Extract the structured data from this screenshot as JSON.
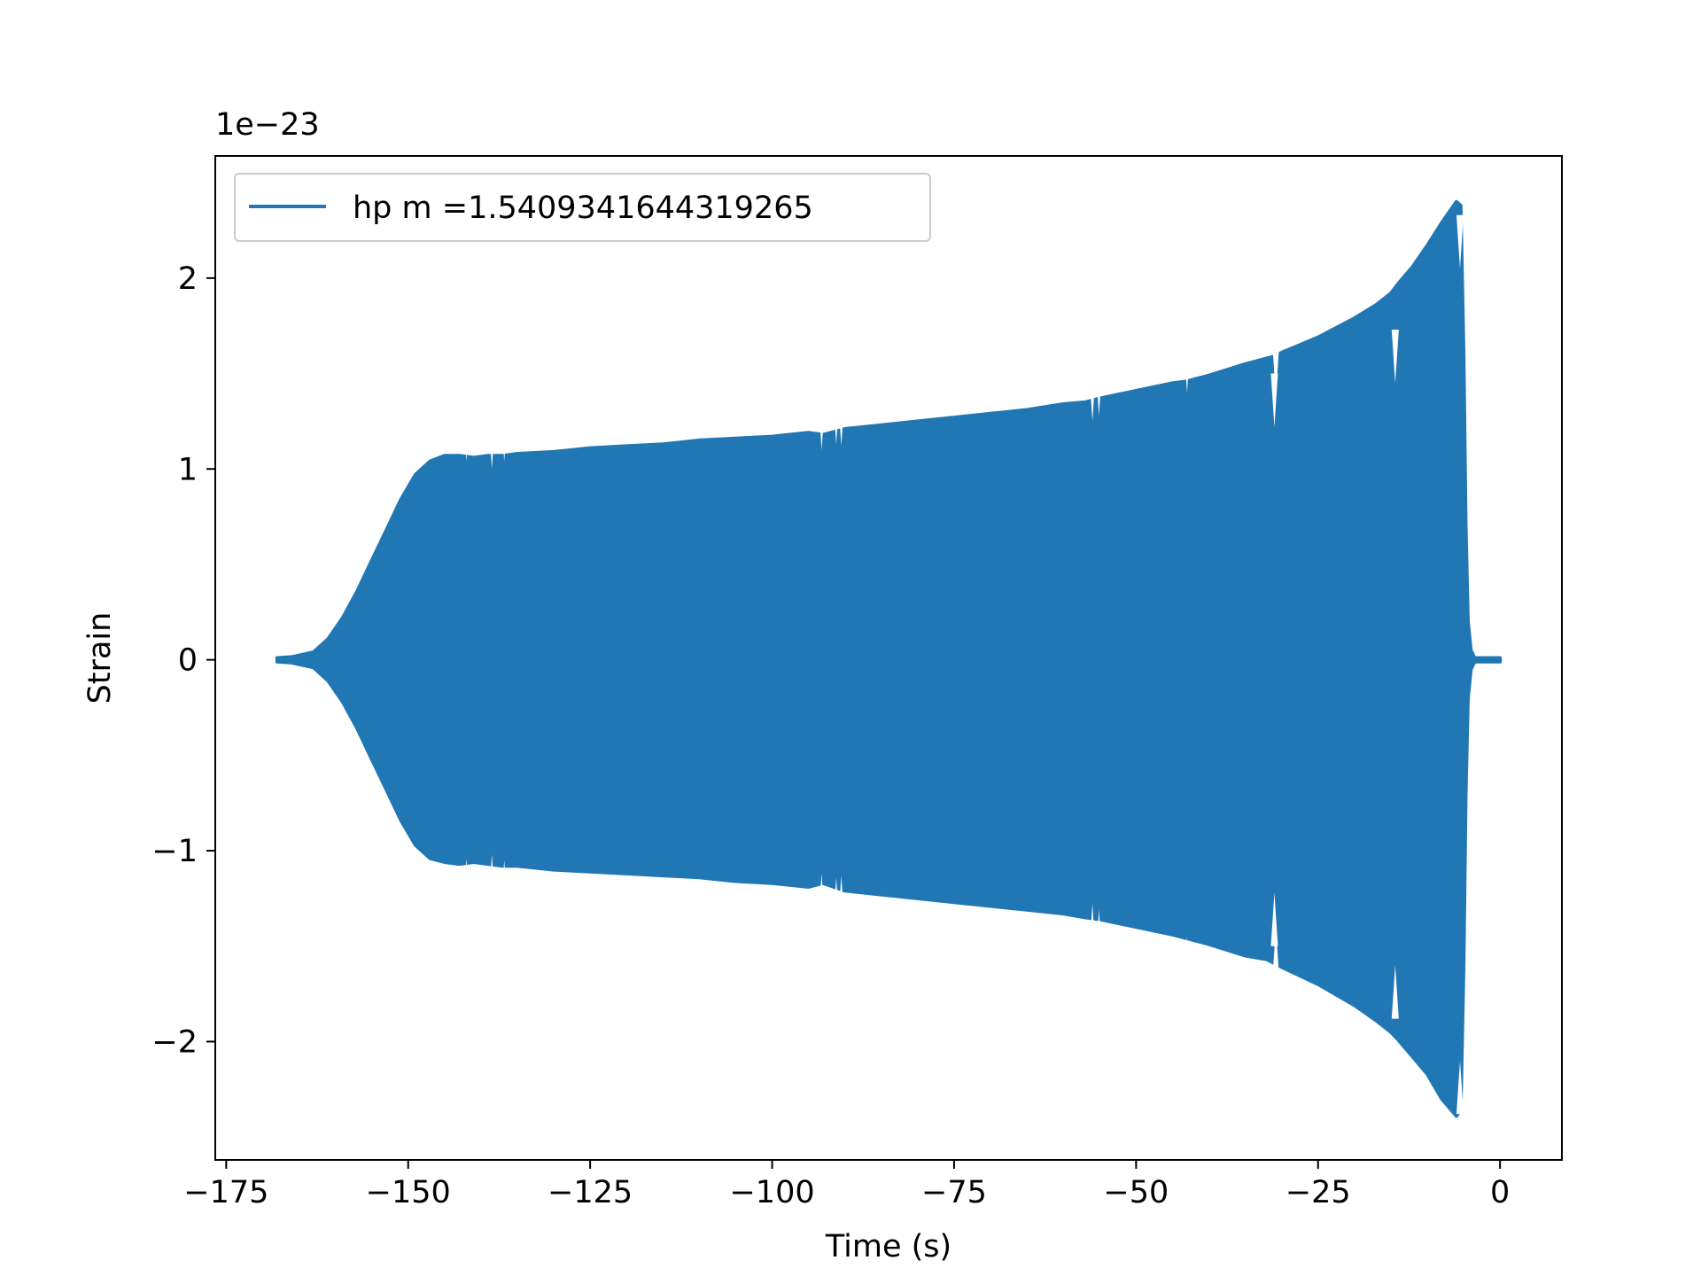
{
  "chart_data": {
    "type": "line",
    "title": "",
    "xlabel": "Time (s)",
    "ylabel": "Strain",
    "y_offset_label": "1e−23",
    "xlim": [
      -176.5,
      8.5
    ],
    "ylim": [
      -2.62,
      2.64
    ],
    "x_ticks": [
      {
        "value": -175,
        "label": "−175"
      },
      {
        "value": -150,
        "label": "−150"
      },
      {
        "value": -125,
        "label": "−125"
      },
      {
        "value": -100,
        "label": "−100"
      },
      {
        "value": -75,
        "label": "−75"
      },
      {
        "value": -50,
        "label": "−50"
      },
      {
        "value": -25,
        "label": "−25"
      },
      {
        "value": 0,
        "label": "0"
      }
    ],
    "y_ticks": [
      {
        "value": 2,
        "label": "2"
      },
      {
        "value": 1,
        "label": "1"
      },
      {
        "value": 0,
        "label": "0"
      },
      {
        "value": -1,
        "label": "−1"
      },
      {
        "value": -2,
        "label": "−2"
      }
    ],
    "grid": false,
    "legend_position": "top-left",
    "series": [
      {
        "name": "hp m =1.5409341644319265",
        "color": "#2077b4",
        "envelope": {
          "x": [
            -168.0,
            -166.0,
            -163.0,
            -161.0,
            -159.0,
            -157.0,
            -155.0,
            -153.0,
            -151.0,
            -149.0,
            -147.0,
            -145.0,
            -143.0,
            -141.0,
            -139.0,
            -137.0,
            -135.0,
            -130.0,
            -125.0,
            -120.0,
            -115.0,
            -110.0,
            -105.0,
            -100.0,
            -95.0,
            -93.0,
            -90.0,
            -85.0,
            -80.0,
            -75.0,
            -70.0,
            -65.0,
            -60.0,
            -57.0,
            -55.0,
            -50.0,
            -45.0,
            -43.0,
            -40.0,
            -35.0,
            -32.0,
            -31.0,
            -30.0,
            -25.0,
            -20.0,
            -17.0,
            -15.0,
            -14.0,
            -12.0,
            -10.0,
            -8.0,
            -6.0,
            -5.4,
            -5.0,
            -4.7,
            -4.4,
            -4.0,
            -3.5,
            0.0
          ],
          "upper": [
            0.01,
            0.015,
            0.04,
            0.11,
            0.22,
            0.36,
            0.52,
            0.68,
            0.84,
            0.97,
            1.04,
            1.07,
            1.07,
            1.06,
            1.07,
            1.07,
            1.08,
            1.09,
            1.11,
            1.12,
            1.13,
            1.15,
            1.16,
            1.17,
            1.19,
            1.18,
            1.21,
            1.23,
            1.25,
            1.27,
            1.29,
            1.31,
            1.34,
            1.35,
            1.37,
            1.41,
            1.45,
            1.46,
            1.49,
            1.55,
            1.58,
            1.59,
            1.61,
            1.69,
            1.79,
            1.86,
            1.92,
            1.97,
            2.06,
            2.17,
            2.29,
            2.4,
            2.38,
            1.6,
            0.7,
            0.2,
            0.05,
            0.01,
            0.01
          ],
          "lower": [
            -0.01,
            -0.015,
            -0.04,
            -0.11,
            -0.22,
            -0.36,
            -0.52,
            -0.68,
            -0.84,
            -0.97,
            -1.04,
            -1.06,
            -1.07,
            -1.06,
            -1.07,
            -1.08,
            -1.08,
            -1.1,
            -1.11,
            -1.12,
            -1.13,
            -1.14,
            -1.16,
            -1.17,
            -1.19,
            -1.17,
            -1.21,
            -1.23,
            -1.25,
            -1.27,
            -1.29,
            -1.31,
            -1.33,
            -1.35,
            -1.36,
            -1.4,
            -1.44,
            -1.46,
            -1.49,
            -1.55,
            -1.57,
            -1.59,
            -1.61,
            -1.7,
            -1.81,
            -1.89,
            -1.95,
            -1.99,
            -2.08,
            -2.17,
            -2.3,
            -2.39,
            -2.36,
            -1.6,
            -0.7,
            -0.2,
            -0.05,
            -0.01,
            -0.01
          ]
        },
        "glitches": [
          {
            "x": -142.0,
            "upper": 1.04,
            "lower": -1.04
          },
          {
            "x": -138.5,
            "upper": 1.0,
            "lower": -1.02
          },
          {
            "x": -136.8,
            "upper": 1.04,
            "lower": -1.05
          },
          {
            "x": -93.2,
            "upper": 1.1,
            "lower": -1.12
          },
          {
            "x": -91.2,
            "upper": 1.13,
            "lower": -1.14
          },
          {
            "x": -90.5,
            "upper": 1.12,
            "lower": -1.13
          },
          {
            "x": -56.0,
            "upper": 1.25,
            "lower": -1.28
          },
          {
            "x": -55.1,
            "upper": 1.28,
            "lower": -1.31
          },
          {
            "x": -43.0,
            "upper": 1.4,
            "lower": -1.45
          },
          {
            "x": -31.0,
            "upper": 1.22,
            "lower": -1.22
          },
          {
            "x": -30.8,
            "upper": 1.38,
            "lower": -1.4
          },
          {
            "x": -14.4,
            "upper": 1.45,
            "lower": -1.6
          },
          {
            "x": -5.5,
            "upper": 2.05,
            "lower": -2.1
          }
        ]
      }
    ]
  }
}
